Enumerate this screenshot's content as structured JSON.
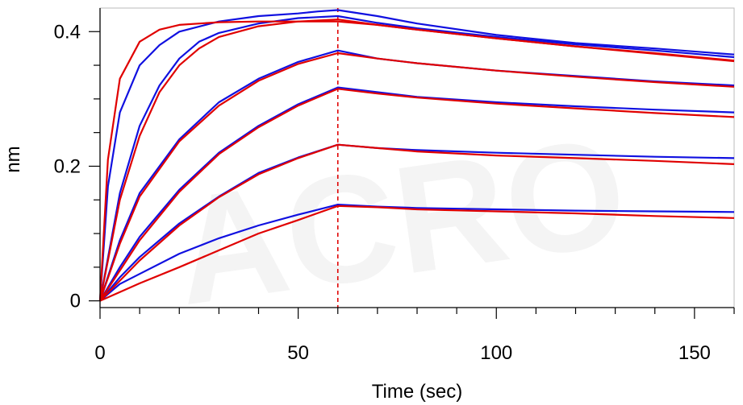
{
  "chart_data": {
    "type": "line",
    "title": "",
    "xlabel": "Time (sec)",
    "ylabel": "nm",
    "xlim": [
      0,
      160
    ],
    "ylim": [
      -0.01,
      0.435
    ],
    "xticks": [
      0,
      50,
      100,
      150
    ],
    "xtick_labels": [
      "0",
      "50",
      "100",
      "150"
    ],
    "yticks": [
      0,
      0.2,
      0.4
    ],
    "ytick_labels": [
      "0",
      "0.2",
      "0.4"
    ],
    "grid": false,
    "legend": "none",
    "reference_line": {
      "x": 60,
      "style": "dashed",
      "color": "#e00000"
    },
    "colors": {
      "measured": "#1010e0",
      "fit": "#e00000",
      "axes_background": "#ffffff",
      "frame": "#bbbbbb"
    },
    "series": [
      {
        "kind": "measured",
        "points": [
          [
            0,
            0
          ],
          [
            2,
            0.17
          ],
          [
            5,
            0.28
          ],
          [
            10,
            0.35
          ],
          [
            15,
            0.38
          ],
          [
            20,
            0.4
          ],
          [
            30,
            0.415
          ],
          [
            40,
            0.423
          ],
          [
            50,
            0.427
          ],
          [
            55,
            0.43
          ],
          [
            60,
            0.432
          ],
          [
            70,
            0.423
          ],
          [
            80,
            0.412
          ],
          [
            100,
            0.395
          ],
          [
            120,
            0.383
          ],
          [
            140,
            0.375
          ],
          [
            160,
            0.366
          ]
        ]
      },
      {
        "kind": "fit",
        "points": [
          [
            0,
            0
          ],
          [
            2,
            0.21
          ],
          [
            5,
            0.33
          ],
          [
            10,
            0.385
          ],
          [
            15,
            0.403
          ],
          [
            20,
            0.41
          ],
          [
            30,
            0.414
          ],
          [
            40,
            0.415
          ],
          [
            50,
            0.415
          ],
          [
            60,
            0.415
          ],
          [
            70,
            0.41
          ],
          [
            80,
            0.403
          ],
          [
            100,
            0.39
          ],
          [
            120,
            0.378
          ],
          [
            140,
            0.368
          ],
          [
            160,
            0.357
          ]
        ]
      },
      {
        "kind": "measured",
        "points": [
          [
            0,
            0
          ],
          [
            5,
            0.16
          ],
          [
            10,
            0.26
          ],
          [
            15,
            0.32
          ],
          [
            20,
            0.36
          ],
          [
            25,
            0.385
          ],
          [
            30,
            0.398
          ],
          [
            40,
            0.412
          ],
          [
            50,
            0.42
          ],
          [
            60,
            0.423
          ],
          [
            70,
            0.413
          ],
          [
            80,
            0.405
          ],
          [
            100,
            0.392
          ],
          [
            120,
            0.381
          ],
          [
            140,
            0.372
          ],
          [
            160,
            0.362
          ]
        ]
      },
      {
        "kind": "fit",
        "points": [
          [
            0,
            0
          ],
          [
            5,
            0.15
          ],
          [
            10,
            0.245
          ],
          [
            15,
            0.31
          ],
          [
            20,
            0.35
          ],
          [
            25,
            0.375
          ],
          [
            30,
            0.392
          ],
          [
            40,
            0.408
          ],
          [
            50,
            0.415
          ],
          [
            60,
            0.418
          ],
          [
            70,
            0.41
          ],
          [
            80,
            0.403
          ],
          [
            100,
            0.39
          ],
          [
            120,
            0.378
          ],
          [
            140,
            0.367
          ],
          [
            160,
            0.356
          ]
        ]
      },
      {
        "kind": "measured",
        "points": [
          [
            0,
            0
          ],
          [
            5,
            0.09
          ],
          [
            10,
            0.16
          ],
          [
            20,
            0.24
          ],
          [
            30,
            0.295
          ],
          [
            40,
            0.33
          ],
          [
            50,
            0.355
          ],
          [
            60,
            0.372
          ],
          [
            70,
            0.36
          ],
          [
            80,
            0.353
          ],
          [
            100,
            0.342
          ],
          [
            120,
            0.334
          ],
          [
            140,
            0.326
          ],
          [
            160,
            0.32
          ]
        ]
      },
      {
        "kind": "fit",
        "points": [
          [
            0,
            0
          ],
          [
            5,
            0.085
          ],
          [
            10,
            0.155
          ],
          [
            20,
            0.237
          ],
          [
            30,
            0.29
          ],
          [
            40,
            0.327
          ],
          [
            50,
            0.352
          ],
          [
            60,
            0.368
          ],
          [
            70,
            0.36
          ],
          [
            80,
            0.353
          ],
          [
            100,
            0.342
          ],
          [
            120,
            0.333
          ],
          [
            140,
            0.325
          ],
          [
            160,
            0.318
          ]
        ]
      },
      {
        "kind": "measured",
        "points": [
          [
            0,
            0
          ],
          [
            5,
            0.05
          ],
          [
            10,
            0.095
          ],
          [
            20,
            0.165
          ],
          [
            30,
            0.22
          ],
          [
            40,
            0.26
          ],
          [
            50,
            0.292
          ],
          [
            60,
            0.317
          ],
          [
            70,
            0.31
          ],
          [
            80,
            0.303
          ],
          [
            100,
            0.295
          ],
          [
            120,
            0.289
          ],
          [
            140,
            0.284
          ],
          [
            160,
            0.28
          ]
        ]
      },
      {
        "kind": "fit",
        "points": [
          [
            0,
            0
          ],
          [
            5,
            0.045
          ],
          [
            10,
            0.09
          ],
          [
            20,
            0.162
          ],
          [
            30,
            0.218
          ],
          [
            40,
            0.258
          ],
          [
            50,
            0.29
          ],
          [
            60,
            0.315
          ],
          [
            70,
            0.308
          ],
          [
            80,
            0.302
          ],
          [
            100,
            0.293
          ],
          [
            120,
            0.286
          ],
          [
            140,
            0.279
          ],
          [
            160,
            0.273
          ]
        ]
      },
      {
        "kind": "measured",
        "points": [
          [
            0,
            0
          ],
          [
            5,
            0.035
          ],
          [
            10,
            0.065
          ],
          [
            20,
            0.115
          ],
          [
            30,
            0.155
          ],
          [
            40,
            0.19
          ],
          [
            50,
            0.213
          ],
          [
            60,
            0.232
          ],
          [
            70,
            0.227
          ],
          [
            80,
            0.224
          ],
          [
            100,
            0.22
          ],
          [
            120,
            0.217
          ],
          [
            140,
            0.214
          ],
          [
            160,
            0.212
          ]
        ]
      },
      {
        "kind": "fit",
        "points": [
          [
            0,
            0
          ],
          [
            5,
            0.03
          ],
          [
            10,
            0.06
          ],
          [
            20,
            0.112
          ],
          [
            30,
            0.154
          ],
          [
            40,
            0.188
          ],
          [
            50,
            0.212
          ],
          [
            60,
            0.232
          ],
          [
            70,
            0.227
          ],
          [
            80,
            0.222
          ],
          [
            100,
            0.216
          ],
          [
            120,
            0.212
          ],
          [
            140,
            0.208
          ],
          [
            160,
            0.203
          ]
        ]
      },
      {
        "kind": "measured",
        "points": [
          [
            0,
            0
          ],
          [
            5,
            0.025
          ],
          [
            10,
            0.04
          ],
          [
            20,
            0.07
          ],
          [
            30,
            0.093
          ],
          [
            40,
            0.112
          ],
          [
            50,
            0.128
          ],
          [
            60,
            0.143
          ],
          [
            70,
            0.14
          ],
          [
            80,
            0.138
          ],
          [
            100,
            0.136
          ],
          [
            120,
            0.134
          ],
          [
            140,
            0.133
          ],
          [
            160,
            0.132
          ]
        ]
      },
      {
        "kind": "fit",
        "points": [
          [
            0,
            0
          ],
          [
            5,
            0.013
          ],
          [
            10,
            0.026
          ],
          [
            20,
            0.05
          ],
          [
            30,
            0.075
          ],
          [
            40,
            0.1
          ],
          [
            50,
            0.12
          ],
          [
            60,
            0.141
          ],
          [
            70,
            0.139
          ],
          [
            80,
            0.136
          ],
          [
            100,
            0.133
          ],
          [
            120,
            0.13
          ],
          [
            140,
            0.126
          ],
          [
            160,
            0.123
          ]
        ]
      }
    ]
  }
}
